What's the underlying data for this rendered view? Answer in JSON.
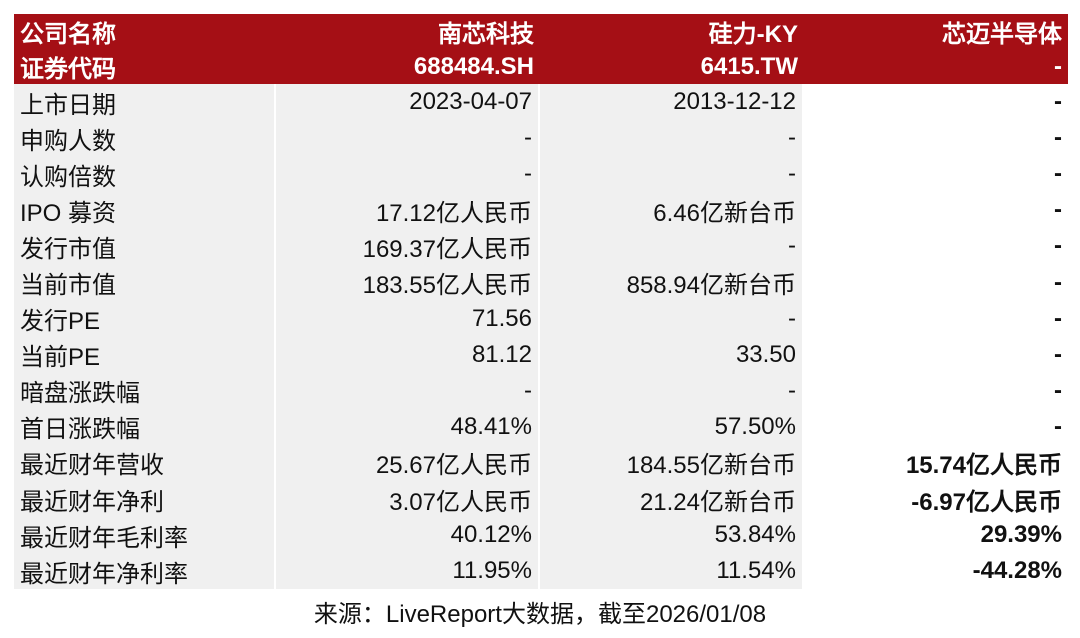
{
  "table": {
    "header": [
      [
        "公司名称",
        "南芯科技",
        "硅力-KY",
        "芯迈半导体"
      ],
      [
        "证券代码",
        "688484.SH",
        "6415.TW",
        "-"
      ]
    ],
    "rows": [
      [
        "上市日期",
        "2023-04-07",
        "2013-12-12",
        "-"
      ],
      [
        "申购人数",
        "-",
        "-",
        "-"
      ],
      [
        "认购倍数",
        "-",
        "-",
        "-"
      ],
      [
        "IPO 募资",
        "17.12亿人民币",
        "6.46亿新台币",
        "-"
      ],
      [
        "发行市值",
        "169.37亿人民币",
        "-",
        "-"
      ],
      [
        "当前市值",
        "183.55亿人民币",
        "858.94亿新台币",
        "-"
      ],
      [
        "发行PE",
        "71.56",
        "-",
        "-"
      ],
      [
        "当前PE",
        "81.12",
        "33.50",
        "-"
      ],
      [
        "暗盘涨跌幅",
        "-",
        "-",
        "-"
      ],
      [
        "首日涨跌幅",
        "48.41%",
        "57.50%",
        "-"
      ],
      [
        "最近财年营收",
        "25.67亿人民币",
        "184.55亿新台币",
        "15.74亿人民币"
      ],
      [
        "最近财年净利",
        "3.07亿人民币",
        "21.24亿新台币",
        "-6.97亿人民币"
      ],
      [
        "最近财年毛利率",
        "40.12%",
        "53.84%",
        "29.39%"
      ],
      [
        "最近财年净利率",
        "11.95%",
        "11.54%",
        "-44.28%"
      ]
    ]
  },
  "source": "来源：LiveReport大数据，截至2026/01/08"
}
